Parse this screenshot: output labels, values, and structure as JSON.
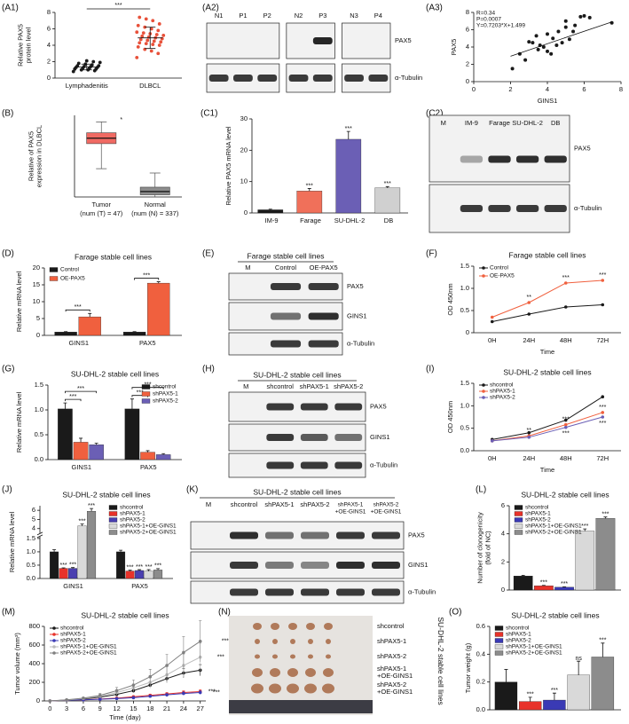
{
  "chart_data": [
    {
      "panel": "(A1)",
      "type": "dot",
      "ylabel": [
        "Relative PAX5",
        "protein level"
      ],
      "categories": [
        "Lymphadenitis",
        "DLBCL"
      ],
      "points": [
        [
          0.8,
          0.9,
          1.0,
          1.0,
          1.1,
          1.1,
          1.2,
          1.2,
          1.3,
          1.3,
          1.4,
          1.4,
          1.5,
          1.5,
          1.6,
          1.7,
          1.8,
          1.9,
          2.0,
          2.1
        ],
        [
          2.5,
          3.0,
          3.3,
          3.5,
          3.8,
          4.0,
          4.1,
          4.2,
          4.3,
          4.4,
          4.5,
          4.6,
          4.7,
          4.8,
          4.9,
          5.0,
          5.1,
          5.2,
          5.3,
          5.4,
          5.5,
          5.6,
          5.8,
          6.0,
          6.2,
          6.4,
          6.6,
          7.0,
          7.2,
          7.4
        ]
      ],
      "means": [
        1.35,
        4.9
      ],
      "errors": [
        0.35,
        1.3
      ],
      "colors": [
        "#1a1a1a",
        "#e8513a"
      ],
      "significance": "***",
      "ylim": [
        0,
        8
      ],
      "yticks": [
        0,
        2,
        4,
        6,
        8
      ]
    },
    {
      "panel": "(A3)",
      "type": "scatter",
      "xlabel": "GINS1",
      "ylabel": "PAX5",
      "x": [
        2.1,
        2.5,
        2.8,
        3.0,
        3.2,
        3.4,
        3.5,
        3.6,
        3.8,
        4.0,
        4.0,
        4.2,
        4.3,
        4.5,
        4.6,
        4.8,
        5.0,
        5.0,
        5.2,
        5.4,
        5.5,
        5.8,
        6.0,
        6.3,
        7.5
      ],
      "y": [
        1.5,
        3.2,
        2.5,
        4.6,
        4.5,
        5.3,
        3.7,
        4.2,
        4.0,
        5.5,
        3.5,
        3.2,
        5.0,
        4.2,
        5.8,
        4.5,
        6.3,
        7.0,
        4.9,
        5.8,
        6.5,
        7.5,
        7.6,
        7.4,
        6.8
      ],
      "annotations": [
        "R=0.34",
        "P=0.0007",
        "Y=0.7203*X+1.499"
      ],
      "fit_line": {
        "x": [
          2,
          7.5
        ],
        "y": [
          2.94,
          6.9
        ]
      },
      "color": "#1a1a1a",
      "xlim": [
        0,
        8
      ],
      "xticks": [
        0,
        2,
        4,
        6,
        8
      ],
      "ylim": [
        0,
        8
      ],
      "yticks": [
        0,
        2,
        4,
        6,
        8
      ]
    },
    {
      "panel": "(B)",
      "type": "box",
      "ylabel": [
        "Relative of  PAX5",
        "expression in DLBCL"
      ],
      "categories": [
        "Tumor",
        "Normal"
      ],
      "category_notes": [
        "(num (T) = 47)",
        "(num (N) = 337)"
      ],
      "boxes": [
        {
          "whisker_low": 2.6,
          "q1": 4.9,
          "median": 5.4,
          "q3": 5.9,
          "whisker_high": 6.9
        },
        {
          "whisker_low": 0,
          "q1": 0.2,
          "median": 0.5,
          "q3": 0.9,
          "whisker_high": 2.2
        }
      ],
      "colors": [
        "#f06a63",
        "#8c8c8c"
      ],
      "significance": "*",
      "ylim": [
        0,
        7.5
      ]
    },
    {
      "panel": "(C1)",
      "type": "bar",
      "ylabel": "Relative PAX5 mRNA level",
      "categories": [
        "IM-9",
        "Farage",
        "SU-DHL-2",
        "DB"
      ],
      "values": [
        1,
        7,
        23.5,
        8
      ],
      "errors": [
        0.2,
        0.8,
        2.5,
        0.4
      ],
      "colors": [
        "#1a1a1a",
        "#f0705a",
        "#6b5fb5",
        "#d0d0d0"
      ],
      "significance": [
        null,
        "***",
        "***",
        "***"
      ],
      "ylim": [
        0,
        30
      ],
      "yticks": [
        0,
        10,
        20,
        30
      ]
    },
    {
      "panel": "(D)",
      "type": "bar",
      "title": "Farage stable cell lines",
      "ylabel": "Relative mRNA level",
      "categories": [
        "GINS1",
        "PAX5"
      ],
      "series": [
        {
          "name": "Control",
          "color": "#1a1a1a",
          "values": [
            1,
            1
          ],
          "errors": [
            0.1,
            0.1
          ]
        },
        {
          "name": "OE-PAX5",
          "color": "#f0603e",
          "values": [
            5.5,
            15.5
          ],
          "errors": [
            1.0,
            0.4
          ],
          "significance": [
            "***",
            "***"
          ]
        }
      ],
      "legend": "upper left",
      "ylim": [
        0,
        20
      ],
      "yticks": [
        0,
        5,
        10,
        15,
        20
      ]
    },
    {
      "panel": "(F)",
      "type": "line",
      "title": "Farage stable cell lines",
      "xlabel": "Time",
      "ylabel": "OD 450nm",
      "categories": [
        "0H",
        "24H",
        "48H",
        "72H"
      ],
      "series": [
        {
          "name": "Control",
          "color": "#1a1a1a",
          "values": [
            0.25,
            0.42,
            0.58,
            0.63
          ]
        },
        {
          "name": "OE-PAX5",
          "color": "#f0603e",
          "values": [
            0.35,
            0.68,
            1.12,
            1.18
          ],
          "significance": [
            null,
            "**",
            "***",
            "***"
          ]
        }
      ],
      "legend": "upper left",
      "ylim": [
        0,
        1.5
      ],
      "yticks": [
        0,
        0.5,
        {
          "value": 1,
          "label": "1.0"
        },
        1.5
      ]
    },
    {
      "panel": "(G)",
      "type": "bar",
      "title": "SU-DHL-2 stable cell lines",
      "ylabel": "Relative mRNA level",
      "categories": [
        "GINS1",
        "PAX5"
      ],
      "series": [
        {
          "name": "shcontrol",
          "color": "#1a1a1a",
          "values": [
            1.02,
            1.02
          ],
          "errors": [
            0.12,
            0.2
          ]
        },
        {
          "name": "shPAX5-1",
          "color": "#f0603e",
          "values": [
            0.35,
            0.15
          ],
          "errors": [
            0.08,
            0.03
          ],
          "significance": [
            "***",
            "***"
          ]
        },
        {
          "name": "shPAX5-2",
          "color": "#6b5fb5",
          "values": [
            0.3,
            0.1
          ],
          "errors": [
            0.03,
            0.02
          ],
          "significance": [
            "***",
            "***"
          ]
        }
      ],
      "legend": "upper right",
      "ylim": [
        0,
        1.5
      ],
      "yticks": [
        {
          "value": 0,
          "label": "0.0"
        },
        0.5,
        {
          "value": 1,
          "label": "1.0"
        },
        1.5
      ]
    },
    {
      "panel": "(I)",
      "type": "line",
      "title": "SU-DHL-2 stable cell lines",
      "xlabel": "Time",
      "ylabel": "OD 450nm",
      "categories": [
        "0H",
        "24H",
        "48H",
        "72H"
      ],
      "series": [
        {
          "name": "shcontrol",
          "color": "#1a1a1a",
          "values": [
            0.25,
            0.4,
            0.68,
            1.2
          ]
        },
        {
          "name": "shPAX5-1",
          "color": "#f0603e",
          "values": [
            0.22,
            0.33,
            0.58,
            0.85
          ],
          "significance": [
            null,
            "**",
            "***",
            "***"
          ]
        },
        {
          "name": "shPAX5-2",
          "color": "#6b5fb5",
          "values": [
            0.22,
            0.3,
            0.52,
            0.75
          ],
          "significance": [
            null,
            null,
            "***",
            "***"
          ]
        }
      ],
      "legend": "upper left",
      "ylim": [
        0,
        1.5
      ],
      "yticks": [
        {
          "value": 0,
          "label": "0.0"
        },
        0.5,
        {
          "value": 1,
          "label": "1.0"
        },
        1.5
      ]
    },
    {
      "panel": "(J)",
      "type": "bar",
      "title": "SU-DHL-2 stable cell lines",
      "ylabel": "Relative mRNA level",
      "categories": [
        "GINS1",
        "PAX5"
      ],
      "series": [
        {
          "name": "shcontrol",
          "color": "#1a1a1a",
          "values": [
            1.0,
            1.0
          ],
          "errors": [
            0.08,
            0.06
          ]
        },
        {
          "name": "shPAX5-1",
          "color": "#e8322a",
          "values": [
            0.38,
            0.28
          ],
          "errors": [
            0.02,
            0.03
          ],
          "significance": [
            "***",
            "***"
          ]
        },
        {
          "name": "shPAX5-2",
          "color": "#4a3fb0",
          "values": [
            0.38,
            0.3
          ],
          "errors": [
            0.03,
            0.03
          ],
          "significance": [
            "***",
            "***"
          ]
        },
        {
          "name": "shPAX5-1+OE-GINS1",
          "color": "#d9d9d9",
          "values": [
            4.3,
            0.28
          ],
          "errors": [
            0.2,
            0.05
          ],
          "significance": [
            "***",
            "***"
          ]
        },
        {
          "name": "shPAX5-2+OE-GINS1",
          "color": "#8c8c8c",
          "values": [
            5.9,
            0.32
          ],
          "errors": [
            0.3,
            0.05
          ],
          "significance": [
            "***",
            "***"
          ]
        }
      ],
      "legend": "upper right",
      "ylim": [
        0,
        6.5
      ],
      "axis_break": [
        1.5,
        3.5
      ],
      "yticks": [
        {
          "value": 0,
          "label": "0.0"
        },
        0.5,
        {
          "value": 1,
          "label": "1.0"
        },
        1.5,
        4,
        5,
        6
      ]
    },
    {
      "panel": "(L)",
      "type": "bar",
      "title": "SU-DHL-2 stable cell lines",
      "ylabel": [
        "Number of clonogenicity",
        "(fold of NC)"
      ],
      "series": [
        {
          "name": "shcontrol",
          "color": "#1a1a1a",
          "values": [
            1.0
          ],
          "errors": [
            0.05
          ]
        },
        {
          "name": "shPAX5-1",
          "color": "#e8322a",
          "values": [
            0.3
          ],
          "errors": [
            0.03
          ],
          "significance": [
            "***"
          ]
        },
        {
          "name": "shPAX5-2",
          "color": "#3a3ab5",
          "values": [
            0.2
          ],
          "errors": [
            0.03
          ],
          "significance": [
            "***"
          ]
        },
        {
          "name": "shPAX5-1+OE-GINS1",
          "color": "#d9d9d9",
          "values": [
            4.2
          ],
          "errors": [
            0.15
          ],
          "significance": [
            "***"
          ]
        },
        {
          "name": "shPAX5-2+OE-GINS1",
          "color": "#8c8c8c",
          "values": [
            5.1
          ],
          "errors": [
            0.1
          ],
          "significance": [
            "***"
          ]
        }
      ],
      "legend": "upper left",
      "ylim": [
        0,
        6
      ],
      "yticks": [
        0,
        2,
        4,
        6
      ]
    },
    {
      "panel": "(M)",
      "type": "line",
      "title": "SU-DHL-2 stable cell lines",
      "xlabel": "Time (day)",
      "ylabel": "Tumor volume (mm³)",
      "x": [
        0,
        3,
        6,
        9,
        12,
        15,
        18,
        21,
        24,
        27
      ],
      "series": [
        {
          "name": "shcontrol",
          "color": "#1a1a1a",
          "values": [
            0,
            10,
            20,
            40,
            70,
            110,
            170,
            240,
            300,
            330
          ],
          "errors": [
            0,
            3,
            5,
            10,
            15,
            20,
            30,
            40,
            50,
            60
          ]
        },
        {
          "name": "shPAX5-1",
          "color": "#e8322a",
          "values": [
            0,
            8,
            12,
            20,
            30,
            45,
            60,
            75,
            90,
            100
          ],
          "errors": [
            0,
            2,
            3,
            5,
            8,
            10,
            12,
            15,
            18,
            20
          ],
          "significance": [
            null,
            null,
            null,
            null,
            null,
            null,
            null,
            null,
            null,
            "***"
          ]
        },
        {
          "name": "shPAX5-2",
          "color": "#3a3ab5",
          "values": [
            0,
            8,
            12,
            18,
            25,
            35,
            50,
            65,
            80,
            90
          ],
          "errors": [
            0,
            2,
            3,
            5,
            7,
            9,
            11,
            14,
            16,
            18
          ],
          "significance": [
            null,
            null,
            null,
            null,
            null,
            null,
            null,
            null,
            null,
            "***"
          ]
        },
        {
          "name": "shPAX5-1+OE-GINS1",
          "color": "#bbbbbb",
          "values": [
            0,
            10,
            25,
            50,
            90,
            140,
            200,
            280,
            380,
            470
          ],
          "errors": [
            0,
            4,
            8,
            15,
            25,
            40,
            60,
            90,
            120,
            150
          ],
          "significance": [
            null,
            null,
            null,
            null,
            null,
            null,
            null,
            null,
            null,
            "***"
          ]
        },
        {
          "name": "shPAX5-2+OE-GINS1",
          "color": "#808080",
          "values": [
            0,
            12,
            30,
            60,
            110,
            170,
            260,
            380,
            520,
            640
          ],
          "errors": [
            0,
            5,
            10,
            20,
            35,
            55,
            80,
            120,
            170,
            220
          ],
          "significance": [
            null,
            null,
            null,
            null,
            null,
            null,
            null,
            null,
            null,
            "***"
          ]
        }
      ],
      "legend": "upper left",
      "xlim": [
        -1,
        28
      ],
      "xticks": [
        0,
        3,
        6,
        9,
        12,
        15,
        18,
        21,
        24,
        27
      ],
      "ylim": [
        0,
        800
      ],
      "yticks": [
        0,
        200,
        400,
        600,
        800
      ]
    },
    {
      "panel": "(O)",
      "type": "bar",
      "title": "SU-DHL-2 stable cell lines",
      "ylabel": "Tumor weight (g)",
      "series": [
        {
          "name": "shcontrol",
          "color": "#1a1a1a",
          "values": [
            0.2
          ],
          "errors": [
            0.09
          ]
        },
        {
          "name": "shPAX5-1",
          "color": "#e8322a",
          "values": [
            0.06
          ],
          "errors": [
            0.03
          ],
          "significance": [
            "***"
          ]
        },
        {
          "name": "shPAX5-2",
          "color": "#3a3ab5",
          "values": [
            0.07
          ],
          "errors": [
            0.05
          ],
          "significance": [
            "***"
          ]
        },
        {
          "name": "shPAX5-1+OE-GINS1",
          "color": "#d9d9d9",
          "values": [
            0.25
          ],
          "errors": [
            0.1
          ],
          "significance": [
            "ns"
          ]
        },
        {
          "name": "shPAX5-2+OE-GINS1",
          "color": "#8c8c8c",
          "values": [
            0.38
          ],
          "errors": [
            0.1
          ],
          "significance": [
            "***"
          ]
        }
      ],
      "legend": "upper left",
      "ylim": [
        0,
        0.6
      ],
      "yticks": [
        {
          "value": 0,
          "label": "0.0"
        },
        0.2,
        0.4,
        0.6
      ]
    }
  ],
  "blots": [
    {
      "panel": "(A2)",
      "lane_groups": [
        [
          "N1",
          "P1",
          "P2"
        ],
        [
          "N2",
          "P3"
        ],
        [
          "N3",
          "P4"
        ]
      ],
      "rows": [
        "PAX5",
        "α-Tubulin"
      ]
    },
    {
      "panel": "(C2)",
      "lane_groups": [
        [
          "M",
          "IM-9",
          "Farage",
          "SU-DHL-2",
          "DB"
        ]
      ],
      "rows": [
        "PAX5",
        "α-Tubulin"
      ]
    },
    {
      "panel": "(E)",
      "title": "Farage stable cell lines",
      "lane_groups": [
        [
          "M",
          "Control",
          "OE-PAX5"
        ]
      ],
      "rows": [
        "PAX5",
        "GINS1",
        "α-Tubulin"
      ]
    },
    {
      "panel": "(H)",
      "title": "SU-DHL-2 stable cell lines",
      "lane_groups": [
        [
          "M",
          "shcontrol",
          "shPAX5-1",
          "shPAX5-2"
        ]
      ],
      "rows": [
        "PAX5",
        "GINS1",
        "α-Tubulin"
      ]
    },
    {
      "panel": "(K)",
      "title": "SU-DHL-2 stable cell lines",
      "lane_groups": [
        [
          "M",
          "shcontrol",
          "shPAX5-1",
          "shPAX5-2",
          [
            "shPAX5-1",
            "+OE-GINS1"
          ],
          [
            "shPAX5-2",
            "+OE-GINS1"
          ]
        ]
      ],
      "rows": [
        "PAX5",
        "GINS1",
        "α-Tubulin"
      ]
    }
  ],
  "photo": {
    "panel": "(N)",
    "rows": [
      "shcontrol",
      "shPAX5-1",
      "shPAX5-2",
      [
        "shPAX5-1",
        "+OE-GINS1"
      ],
      [
        "shPAX5-2",
        "+OE-GINS1"
      ]
    ],
    "side_label": "SU-DHL-2 stable cell lines"
  }
}
